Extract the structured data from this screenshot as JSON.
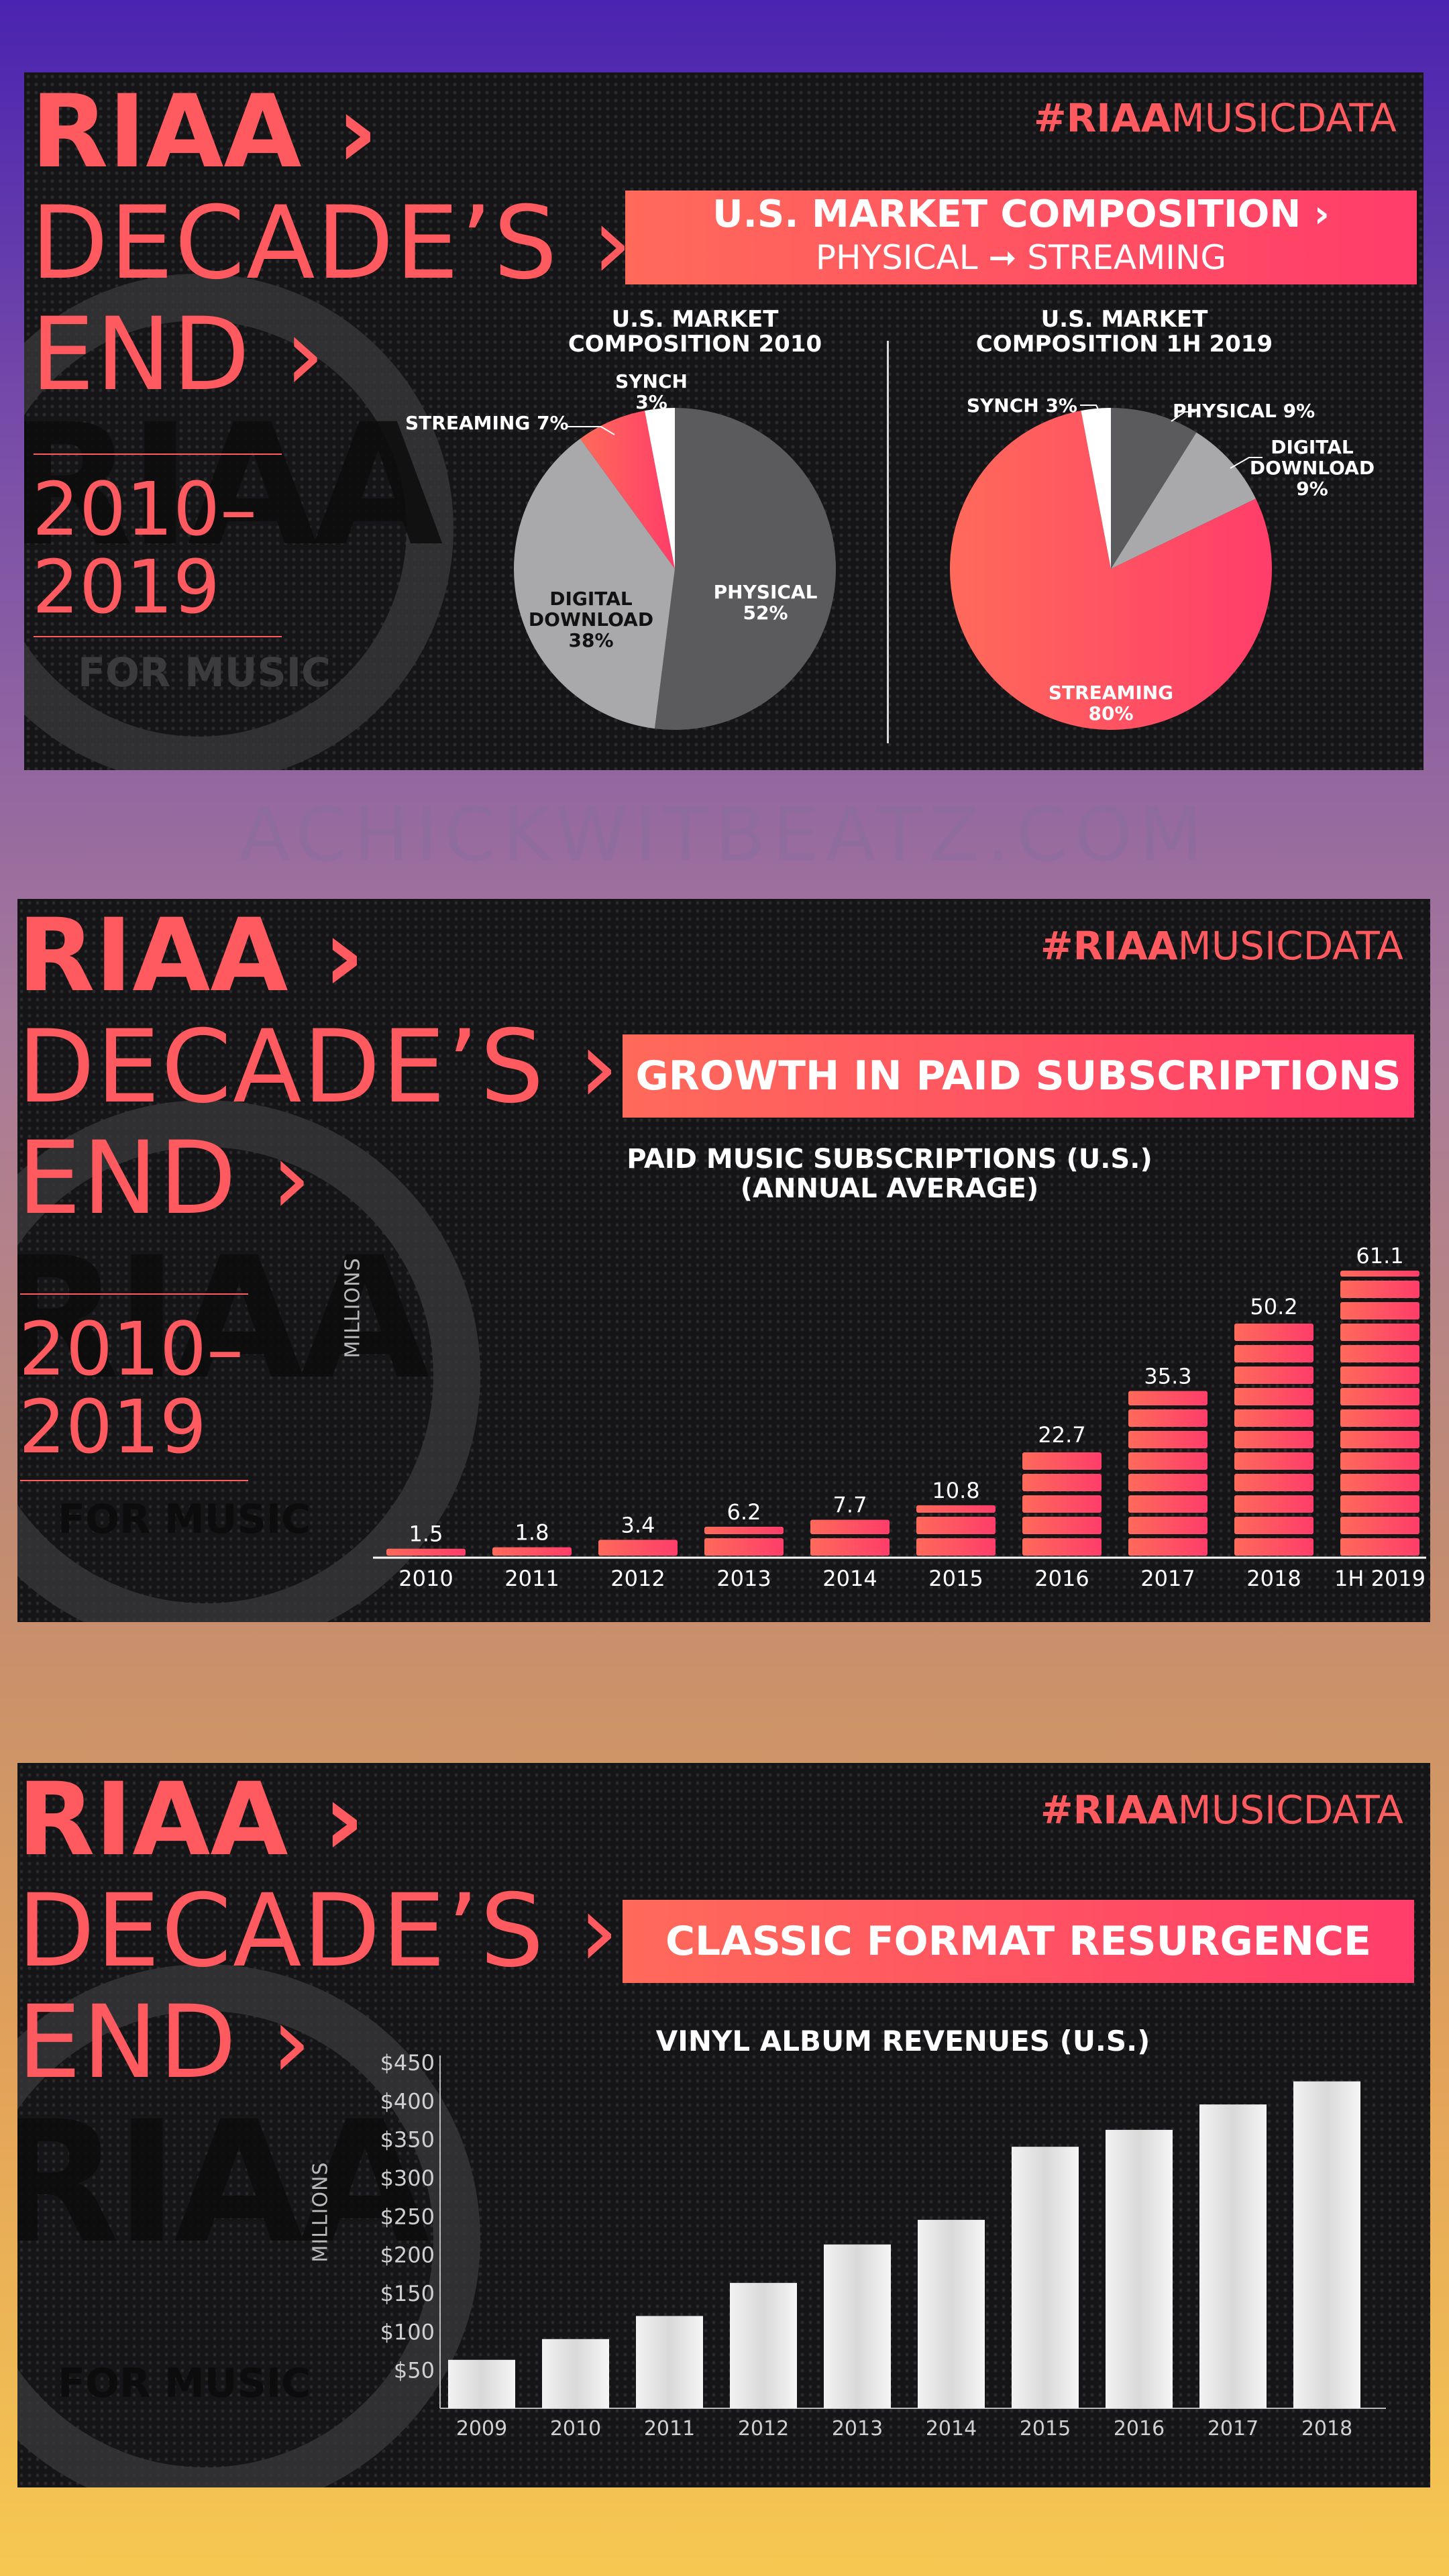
{
  "brand": {
    "riaa": "RIAA ›",
    "decades": "DECADE’S ›",
    "end": "END ›",
    "years": "2010–\n2019",
    "hashtag_bold": "#RIAA",
    "hashtag_rest": "MUSICDATA",
    "watermark_riaa": "RIAA",
    "watermark_for_music": "FOR MUSIC"
  },
  "site_url": "ACHICKWITBEATZ.COM",
  "panel1": {
    "banner_title": "U.S. MARKET COMPOSITION ›",
    "banner_subtitle": "PHYSICAL ➞ STREAMING"
  },
  "panel2": {
    "banner_title": "GROWTH IN PAID SUBSCRIPTIONS"
  },
  "panel3": {
    "banner_title": "CLASSIC FORMAT RESURGENCE"
  },
  "colors": {
    "accent": "#ff5a5f",
    "gray_dark": "#5b5b5e",
    "gray_light": "#a9a9ac",
    "white": "#ffffff"
  },
  "chart_data": [
    {
      "type": "pie",
      "title": "U.S. MARKET\nCOMPOSITION 2010",
      "slices": [
        {
          "name": "PHYSICAL",
          "value": 52,
          "label": "PHYSICAL\n52%"
        },
        {
          "name": "DIGITAL DOWNLOAD",
          "value": 38,
          "label": "DIGITAL\nDOWNLOAD\n38%"
        },
        {
          "name": "STREAMING",
          "value": 7,
          "label": "STREAMING 7%"
        },
        {
          "name": "SYNCH",
          "value": 3,
          "label": "SYNCH\n3%"
        }
      ]
    },
    {
      "type": "pie",
      "title": "U.S. MARKET\nCOMPOSITION 1H 2019",
      "slices": [
        {
          "name": "PHYSICAL",
          "value": 9,
          "label": "PHYSICAL 9%"
        },
        {
          "name": "DIGITAL DOWNLOAD",
          "value": 9,
          "label": "DIGITAL\nDOWNLOAD\n9%"
        },
        {
          "name": "STREAMING",
          "value": 80,
          "label": "STREAMING\n80%"
        },
        {
          "name": "SYNCH",
          "value": 3,
          "label": "SYNCH 3%"
        }
      ]
    },
    {
      "type": "bar",
      "title": "PAID MUSIC SUBSCRIPTIONS (U.S.)\n(ANNUAL AVERAGE)",
      "ylabel": "MILLIONS",
      "categories": [
        "2010",
        "2011",
        "2012",
        "2013",
        "2014",
        "2015",
        "2016",
        "2017",
        "2018",
        "1H 2019"
      ],
      "values": [
        1.5,
        1.8,
        3.4,
        6.2,
        7.7,
        10.8,
        22.7,
        35.3,
        50.2,
        61.1
      ],
      "value_labels": [
        "1.5",
        "1.8",
        "3.4",
        "6.2",
        "7.7",
        "10.8",
        "22.7",
        "35.3",
        "50.2",
        "61.1"
      ],
      "ylim": [
        0,
        65
      ],
      "grid": false
    },
    {
      "type": "bar",
      "title": "VINYL ALBUM REVENUES (U.S.)",
      "ylabel": "MILLIONS",
      "categories": [
        "2009",
        "2010",
        "2011",
        "2012",
        "2013",
        "2014",
        "2015",
        "2016",
        "2017",
        "2018"
      ],
      "values": [
        63,
        90,
        120,
        163,
        213,
        245,
        340,
        362,
        395,
        425
      ],
      "yticks": [
        "$50",
        "$100",
        "$150",
        "$200",
        "$250",
        "$300",
        "$350",
        "$400",
        "$450"
      ],
      "ytick_values": [
        50,
        100,
        150,
        200,
        250,
        300,
        350,
        400,
        450
      ],
      "ylim": [
        0,
        450
      ],
      "grid": false
    }
  ]
}
